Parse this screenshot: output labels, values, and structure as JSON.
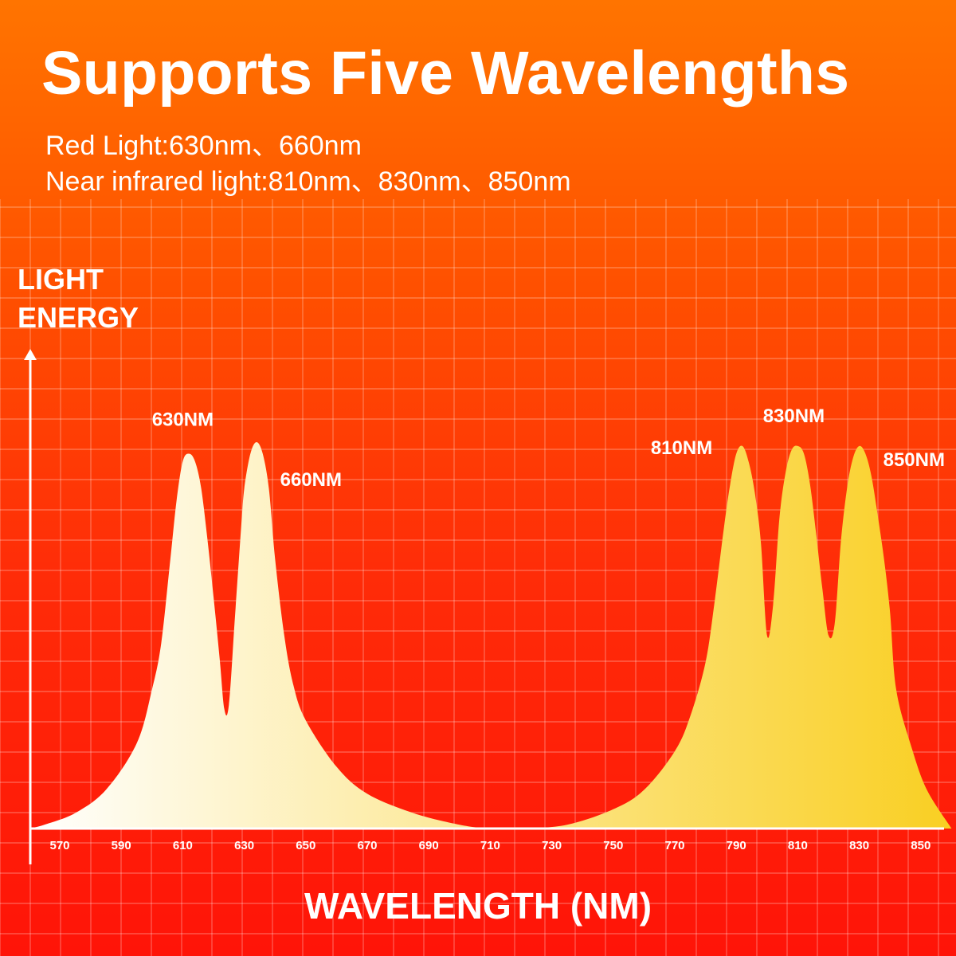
{
  "title": "Supports Five Wavelengths",
  "subtitle_lines": [
    "Red Light:630nm、660nm",
    "Near infrared light:810nm、830nm、850nm"
  ],
  "colors": {
    "background_top": "#ff7400",
    "background_bottom": "#ff1408",
    "curve_left": "#ffffff",
    "curve_right": "#f9cf22",
    "text": "#ffffff"
  },
  "chart_data": {
    "type": "area",
    "title": "",
    "xlabel": "WAVELENGTH (NM)",
    "ylabel_lines": [
      "LIGHT",
      "ENERGY"
    ],
    "xlim": [
      560,
      860
    ],
    "ylim": [
      0,
      1
    ],
    "grid": true,
    "x_ticks": [
      570,
      590,
      610,
      630,
      650,
      670,
      690,
      710,
      730,
      750,
      770,
      790,
      810,
      830,
      850
    ],
    "peaks": [
      {
        "label": "630NM",
        "x": 610,
        "y": 0.97
      },
      {
        "label": "660NM",
        "x": 630,
        "y": 1.0
      },
      {
        "label": "810NM",
        "x": 790,
        "y": 0.99
      },
      {
        "label": "830NM",
        "x": 810,
        "y": 0.99
      },
      {
        "label": "850NM",
        "x": 830,
        "y": 0.99
      }
    ],
    "curve": {
      "x": [
        560,
        565,
        575,
        585,
        595,
        600,
        603,
        606,
        608,
        610,
        612,
        614,
        616,
        618,
        620,
        622,
        623.5,
        625,
        627,
        629,
        630,
        632,
        634,
        636,
        638,
        640,
        643,
        646,
        650,
        660,
        670,
        685,
        700,
        710,
        720,
        735,
        750,
        760,
        770,
        775,
        780,
        783,
        786,
        788,
        790,
        792,
        794,
        796,
        798,
        800,
        802,
        804,
        806,
        808,
        810,
        812,
        814,
        816,
        818,
        820,
        822,
        824,
        826,
        828,
        830,
        832,
        834,
        836,
        838,
        840,
        842,
        847,
        852,
        860
      ],
      "y": [
        0.0,
        0.01,
        0.04,
        0.1,
        0.22,
        0.36,
        0.48,
        0.7,
        0.85,
        0.95,
        0.97,
        0.95,
        0.88,
        0.75,
        0.6,
        0.44,
        0.31,
        0.32,
        0.55,
        0.78,
        0.88,
        0.97,
        1.0,
        0.97,
        0.88,
        0.7,
        0.5,
        0.37,
        0.28,
        0.16,
        0.09,
        0.04,
        0.01,
        0.0,
        0.0,
        0.01,
        0.05,
        0.1,
        0.2,
        0.29,
        0.43,
        0.59,
        0.78,
        0.89,
        0.97,
        0.99,
        0.95,
        0.87,
        0.74,
        0.5,
        0.58,
        0.8,
        0.92,
        0.98,
        0.99,
        0.97,
        0.89,
        0.76,
        0.62,
        0.5,
        0.53,
        0.74,
        0.88,
        0.96,
        0.99,
        0.97,
        0.91,
        0.81,
        0.7,
        0.56,
        0.36,
        0.21,
        0.1,
        0.0
      ]
    }
  }
}
